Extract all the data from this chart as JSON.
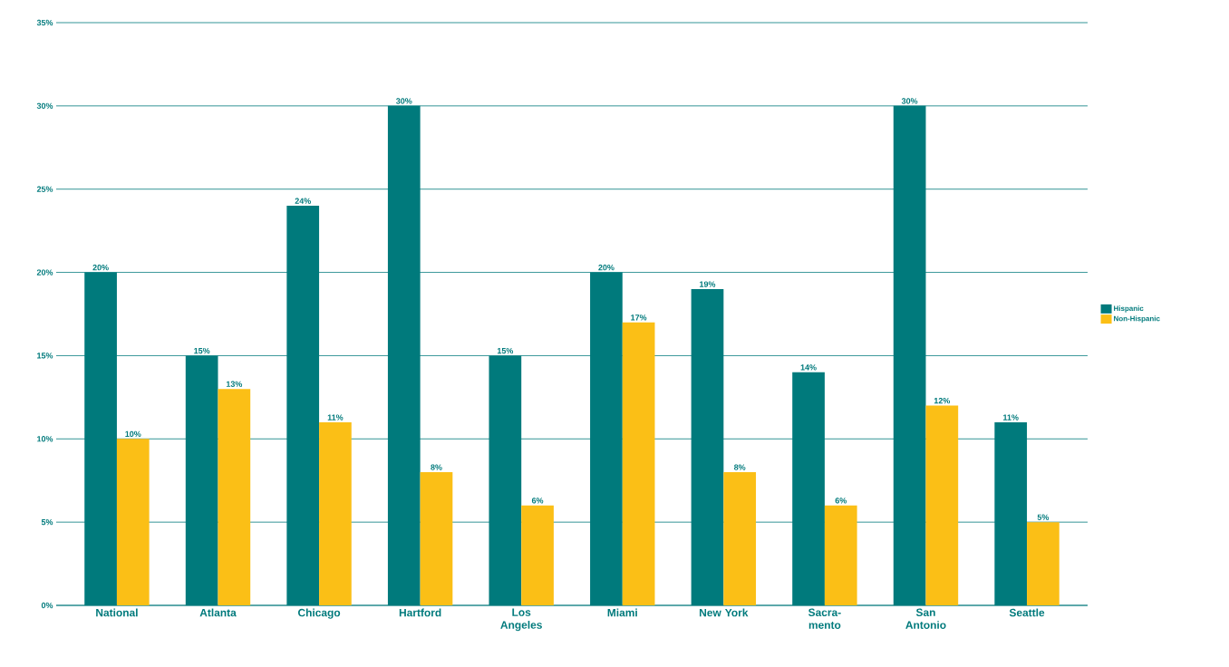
{
  "chart_data": {
    "type": "bar",
    "categories": [
      "National",
      "Atlanta",
      "Chicago",
      "Hartford",
      "Los Angeles",
      "Miami",
      "New York",
      "Sacra-mento",
      "San Antonio",
      "Seattle"
    ],
    "series": [
      {
        "name": "Hispanic",
        "color": "#007a7c",
        "values": [
          20,
          15,
          24,
          30,
          15,
          20,
          19,
          14,
          30,
          11
        ],
        "value_labels": [
          "20%",
          "15%",
          "24%",
          "30%",
          "15%",
          "20%",
          "19%",
          "14%",
          "30%",
          "11%"
        ]
      },
      {
        "name": "Non-Hispanic",
        "color": "#fbbf16",
        "values": [
          10,
          13,
          11,
          8,
          6,
          17,
          8,
          6,
          12,
          5
        ],
        "value_labels": [
          "10%",
          "13%",
          "11%",
          "8%",
          "6%",
          "17%",
          "8%",
          "6%",
          "12%",
          "5%"
        ]
      }
    ],
    "ylim": [
      0,
      35
    ],
    "yticks": [
      {
        "value": 0,
        "label": "0%"
      },
      {
        "value": 5,
        "label": "5%"
      },
      {
        "value": 10,
        "label": "10%"
      },
      {
        "value": 15,
        "label": "15%"
      },
      {
        "value": 20,
        "label": "20%"
      },
      {
        "value": 25,
        "label": "25%"
      },
      {
        "value": 30,
        "label": "30%"
      },
      {
        "value": 35,
        "label": "35%"
      }
    ],
    "grid": "y",
    "legend": "right"
  }
}
